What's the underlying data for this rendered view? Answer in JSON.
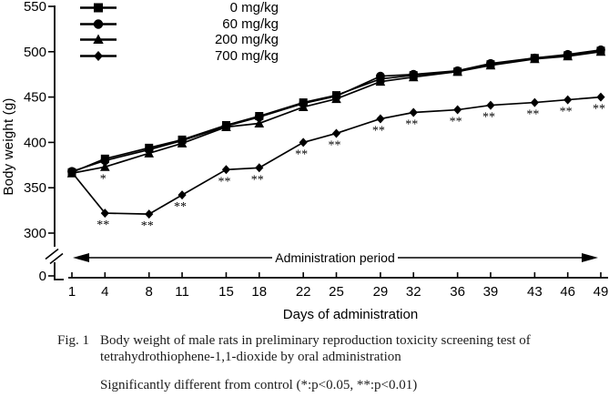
{
  "figure": {
    "y_axis_label": "Body weight (g)",
    "x_axis_label": "Days of administration",
    "administration_period_label": "Administration period",
    "caption": {
      "fig_label": "Fig. 1",
      "line1": "Body weight of male rats in preliminary reproduction toxicity screening test of",
      "line2": "tetrahydrothiophene-1,1-dioxide by oral administration",
      "significance_note": "Significantly different from control (*:p<0.05,  **:p<0.01)"
    },
    "colors": {
      "ink": "#000000",
      "background": "#ffffff"
    }
  },
  "chart_data": {
    "type": "line",
    "title": "",
    "xlabel": "Days of administration",
    "ylabel": "Body weight (g)",
    "x": [
      1,
      4,
      8,
      11,
      15,
      18,
      22,
      25,
      29,
      32,
      36,
      39,
      43,
      46,
      49
    ],
    "y_ticks_upper": [
      550,
      500,
      450,
      400,
      350,
      300
    ],
    "y_tick_zero": "0",
    "y_axis_break": true,
    "ylim_upper_segment": [
      300,
      550
    ],
    "xlim": [
      1,
      49
    ],
    "grid": false,
    "legend_position": "top-left",
    "series": [
      {
        "name": "0 mg/kg",
        "marker": "square",
        "values": [
          367,
          382,
          394,
          403,
          419,
          429,
          444,
          452,
          470,
          474,
          478,
          486,
          493,
          496,
          501
        ],
        "sig": [
          "",
          "",
          "",
          "",
          "",
          "",
          "",
          "",
          "",
          "",
          "",
          "",
          "",
          "",
          ""
        ]
      },
      {
        "name": "60 mg/kg",
        "marker": "circle",
        "values": [
          368,
          380,
          392,
          402,
          418,
          428,
          443,
          451,
          473,
          475,
          479,
          487,
          493,
          497,
          502
        ],
        "sig": [
          "",
          "",
          "",
          "",
          "",
          "",
          "",
          "",
          "",
          "",
          "",
          "",
          "",
          "",
          ""
        ]
      },
      {
        "name": "200 mg/kg",
        "marker": "triangle",
        "values": [
          366,
          373,
          388,
          399,
          417,
          421,
          439,
          448,
          467,
          472,
          478,
          485,
          492,
          495,
          500
        ],
        "sig": [
          "",
          "*",
          "",
          "",
          "",
          "",
          "",
          "",
          "",
          "",
          "",
          "",
          "",
          "",
          ""
        ]
      },
      {
        "name": "700 mg/kg",
        "marker": "diamond",
        "values": [
          367,
          322,
          321,
          342,
          370,
          372,
          400,
          410,
          426,
          433,
          436,
          441,
          444,
          447,
          450
        ],
        "sig": [
          "",
          "**",
          "**",
          "**",
          "**",
          "**",
          "**",
          "**",
          "**",
          "**",
          "**",
          "**",
          "**",
          "**",
          "**"
        ]
      }
    ],
    "annotations": {
      "administration_period": "Administration period",
      "significance_legend": "*:p<0.05, **:p<0.01"
    }
  }
}
